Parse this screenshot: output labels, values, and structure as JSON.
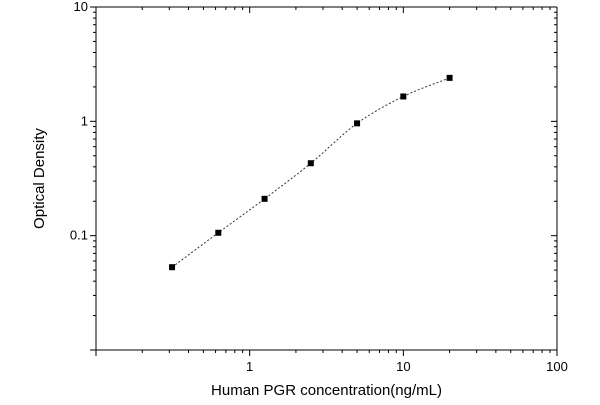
{
  "chart_data": {
    "type": "scatter",
    "xlabel": "Human PGR concentration(ng/mL)",
    "ylabel": "Optical Density",
    "xscale": "log",
    "yscale": "log",
    "xlim": [
      0.1,
      100
    ],
    "ylim": [
      0.01,
      10
    ],
    "x_ticks": [
      {
        "value": 1,
        "label": "1"
      },
      {
        "value": 10,
        "label": "10"
      },
      {
        "value": 100,
        "label": "100"
      }
    ],
    "y_ticks": [
      {
        "value": 0.1,
        "label": "0.1"
      },
      {
        "value": 1,
        "label": "1"
      },
      {
        "value": 10,
        "label": "10"
      }
    ],
    "grid": false,
    "legend": "none",
    "marker": "square",
    "fit_line": "dotted sigmoidal curve through points",
    "colors": {
      "points": "#000000",
      "axes": "#000000",
      "curve": "#333333"
    },
    "series": [
      {
        "x": [
          0.3125,
          0.625,
          1.25,
          2.5,
          5,
          10,
          20
        ],
        "y": [
          0.053,
          0.106,
          0.21,
          0.43,
          0.96,
          1.65,
          2.4
        ]
      }
    ]
  }
}
